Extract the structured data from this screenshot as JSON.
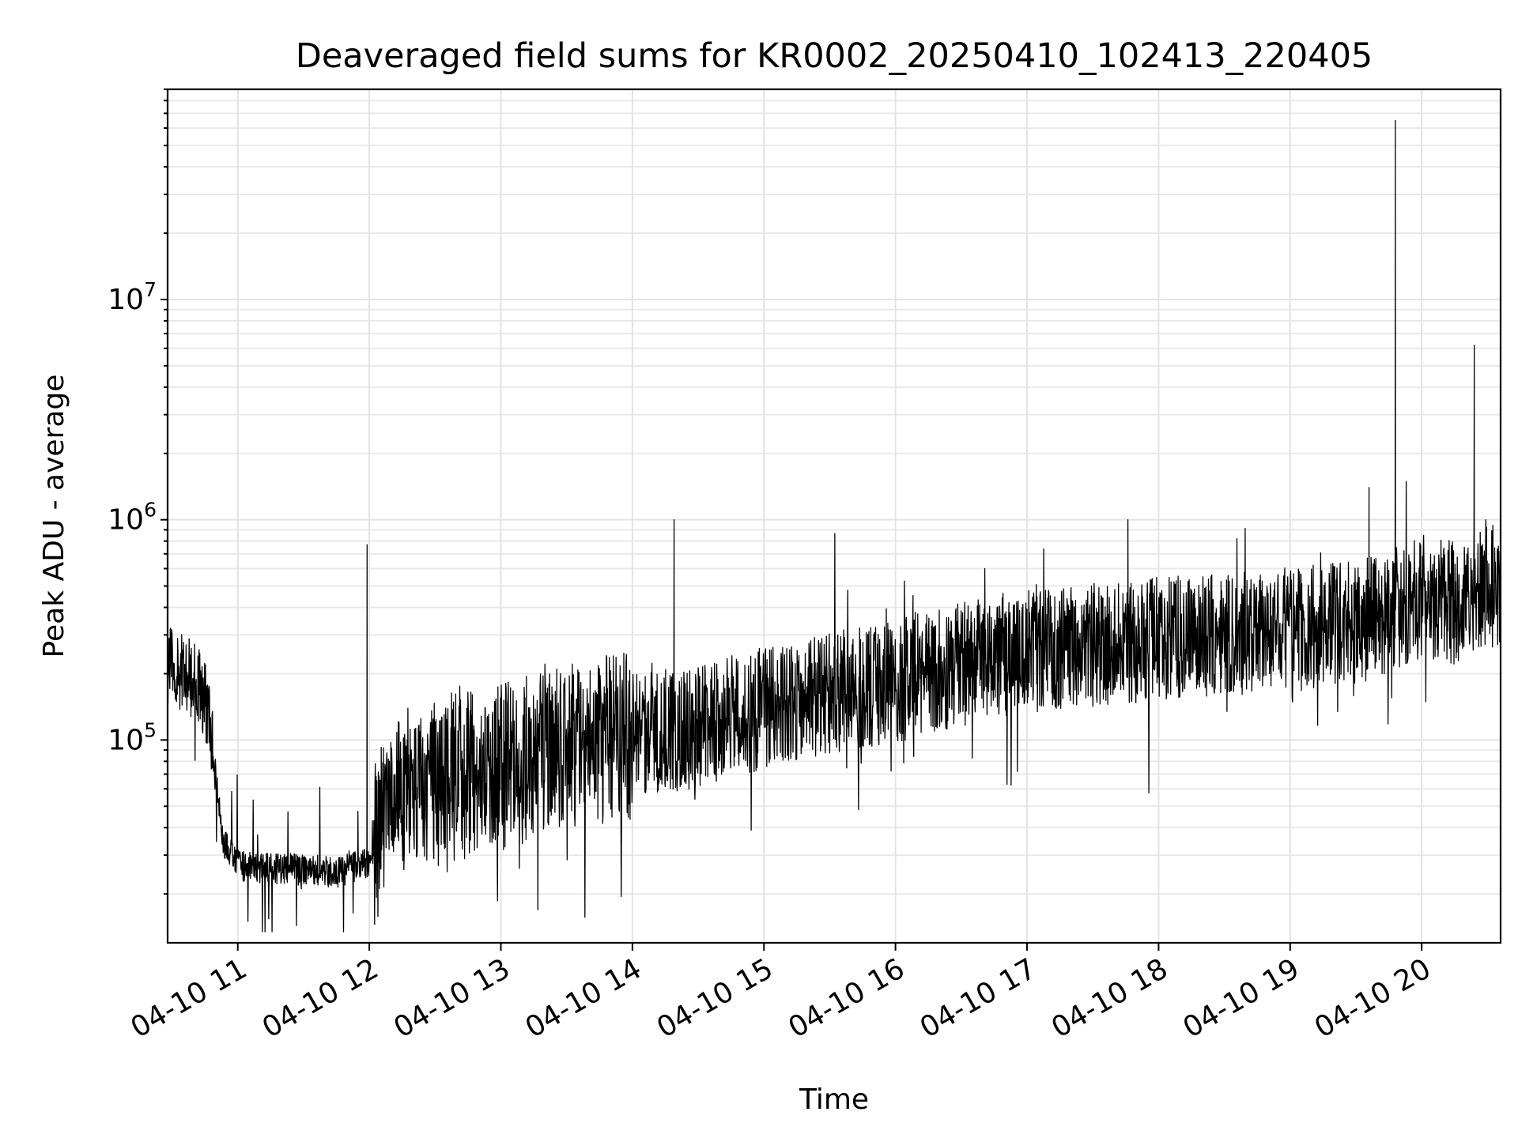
{
  "chart_data": {
    "type": "line",
    "title": "Deaveraged field sums for KR0002_20250410_102413_220405",
    "xlabel": "Time",
    "ylabel": "Peak ADU - average",
    "x_ticks": [
      "04-10 11",
      "04-10 12",
      "04-10 13",
      "04-10 14",
      "04-10 15",
      "04-10 16",
      "04-10 17",
      "04-10 18",
      "04-10 19",
      "04-10 20"
    ],
    "y_ticks": [
      {
        "value": 100000,
        "base": "10",
        "exponent": "5"
      },
      {
        "value": 1000000,
        "base": "10",
        "exponent": "6"
      },
      {
        "value": 10000000,
        "base": "10",
        "exponent": "7"
      }
    ],
    "xlim": [
      "2025-04-10 10:28",
      "2025-04-10 20:36"
    ],
    "ylim": [
      12000,
      90000000
    ],
    "yscale": "log",
    "grid": "major and minor",
    "legend": "none",
    "line_color": "#000000",
    "series": [
      {
        "x": [
          "2025-04-10 10:28",
          "2025-04-10 10:35",
          "2025-04-10 10:42",
          "2025-04-10 10:47",
          "2025-04-10 10:53",
          "2025-04-10 11:00",
          "2025-04-10 11:15",
          "2025-04-10 11:30",
          "2025-04-10 11:45",
          "2025-04-10 12:00",
          "2025-04-10 12:10",
          "2025-04-10 12:30",
          "2025-04-10 13:00",
          "2025-04-10 13:30",
          "2025-04-10 14:00",
          "2025-04-10 14:30",
          "2025-04-10 15:00",
          "2025-04-10 15:30",
          "2025-04-10 16:00",
          "2025-04-10 16:30",
          "2025-04-10 17:00",
          "2025-04-10 17:30",
          "2025-04-10 18:00",
          "2025-04-10 18:30",
          "2025-04-10 19:00",
          "2025-04-10 19:30",
          "2025-04-10 19:50",
          "2025-04-10 20:00",
          "2025-04-10 20:15",
          "2025-04-10 20:36"
        ],
        "y": [
          230000,
          200000,
          180000,
          130000,
          35000,
          27000,
          26000,
          26000,
          25000,
          28000,
          55000,
          65000,
          75000,
          95000,
          105000,
          115000,
          140000,
          165000,
          185000,
          220000,
          250000,
          270000,
          290000,
          300000,
          320000,
          340000,
          400000,
          450000,
          420000,
          520000
        ]
      }
    ],
    "spikes": [
      {
        "x": "2025-04-10 11:59",
        "y": 770000
      },
      {
        "x": "2025-04-10 14:19",
        "y": 1000000
      },
      {
        "x": "2025-04-10 17:46",
        "y": 1000000
      },
      {
        "x": "2025-04-10 19:36",
        "y": 1400000
      },
      {
        "x": "2025-04-10 19:48",
        "y": 65000000
      },
      {
        "x": "2025-04-10 20:24",
        "y": 6200000
      }
    ]
  }
}
